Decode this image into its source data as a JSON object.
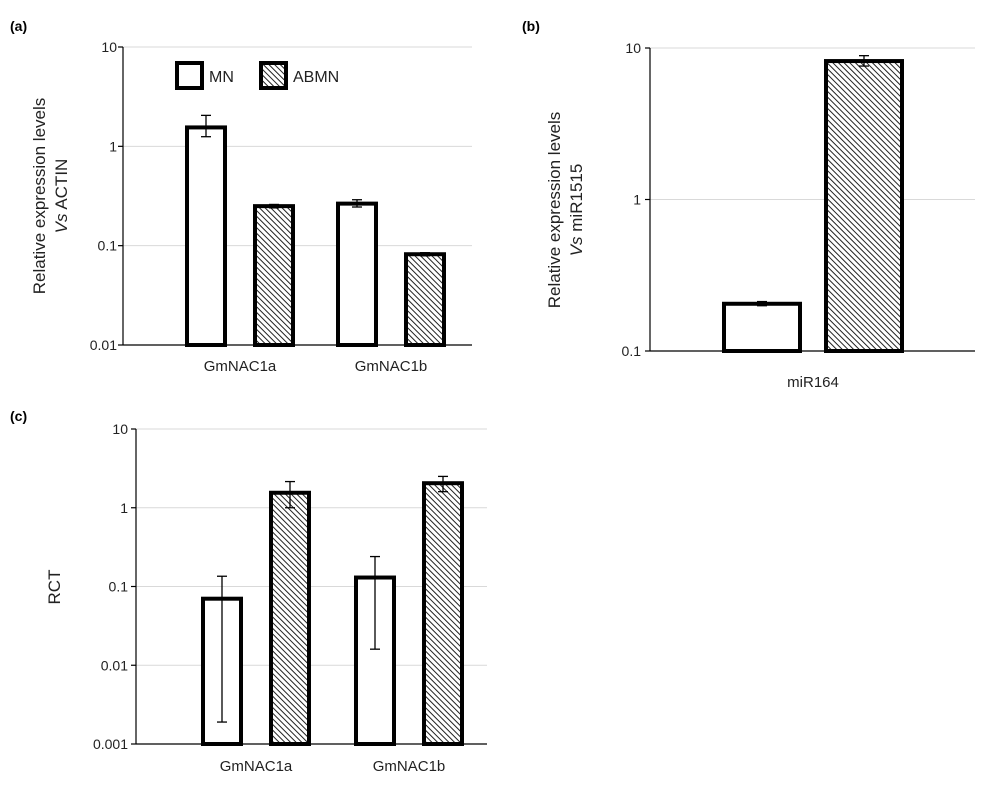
{
  "colors": {
    "mn_fill": "#ffffff",
    "abmn_fill": "hatch",
    "stroke": "#000000",
    "grid": "#d9d9d9"
  },
  "chart_data": [
    {
      "panel": "(a)",
      "type": "bar",
      "scale": "log",
      "ylabel_line1": "Relative expression levels",
      "ylabel_line2_italic": "Vs",
      "ylabel_line2_rest": " ACTIN",
      "ylim": [
        0.01,
        10
      ],
      "yticks": [
        0.01,
        0.1,
        1,
        10
      ],
      "ytick_labels": [
        "0.01",
        "0.1",
        "1",
        "10"
      ],
      "categories": [
        "GmNAC1a",
        "GmNAC1b"
      ],
      "legend": [
        "MN",
        "ABMN"
      ],
      "series": [
        {
          "name": "MN",
          "values": [
            1.55,
            0.265
          ],
          "err_low": [
            1.25,
            0.245
          ],
          "err_high": [
            2.05,
            0.29
          ]
        },
        {
          "name": "ABMN",
          "values": [
            0.25,
            0.082
          ],
          "err_low": [
            0.24,
            0.079
          ],
          "err_high": [
            0.26,
            0.085
          ]
        }
      ]
    },
    {
      "panel": "(b)",
      "type": "bar",
      "scale": "log",
      "ylabel_line1": "Relative expression levels",
      "ylabel_line2_italic": "Vs",
      "ylabel_line2_rest": " miR1515",
      "ylim": [
        0.1,
        10
      ],
      "yticks": [
        0.1,
        1,
        10
      ],
      "ytick_labels": [
        "0.1",
        "1",
        "10"
      ],
      "categories": [
        "miR164"
      ],
      "series": [
        {
          "name": "MN",
          "values": [
            0.205
          ],
          "err_low": [
            0.199
          ],
          "err_high": [
            0.212
          ]
        },
        {
          "name": "ABMN",
          "values": [
            8.2
          ],
          "err_low": [
            7.6
          ],
          "err_high": [
            8.9
          ]
        }
      ]
    },
    {
      "panel": "(c)",
      "type": "bar",
      "scale": "log",
      "ylabel_line1": "RCT",
      "ylim": [
        0.001,
        10
      ],
      "yticks": [
        0.001,
        0.01,
        0.1,
        1,
        10
      ],
      "ytick_labels": [
        "0.001",
        "0.01",
        "0.1",
        "1",
        "10"
      ],
      "categories": [
        "GmNAC1a",
        "GmNAC1b"
      ],
      "series": [
        {
          "name": "MN",
          "values": [
            0.07,
            0.13
          ],
          "err_low": [
            0.0019,
            0.016
          ],
          "err_high": [
            0.135,
            0.24
          ]
        },
        {
          "name": "ABMN",
          "values": [
            1.55,
            2.05
          ],
          "err_low": [
            1.0,
            1.6
          ],
          "err_high": [
            2.15,
            2.5
          ]
        }
      ]
    }
  ]
}
